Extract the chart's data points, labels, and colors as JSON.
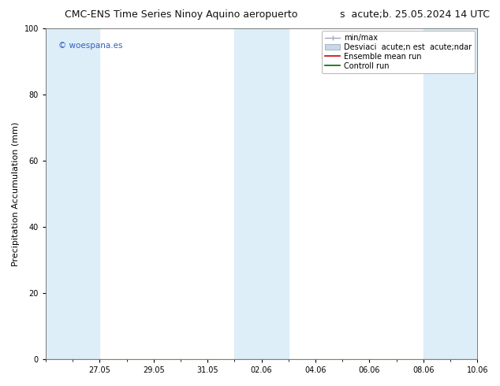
{
  "title": "CMC-ENS Time Series Ninoy Aquino aeropuerto",
  "subtitle": "s  acute;b. 25.05.2024 14 UTC",
  "ylabel": "Precipitation Accumulation (mm)",
  "ylim": [
    0,
    100
  ],
  "yticks": [
    0,
    20,
    40,
    60,
    80,
    100
  ],
  "background_color": "#ffffff",
  "plot_bg_color": "#ffffff",
  "watermark": "© woespana.es",
  "watermark_color": "#3060c0",
  "shaded_bands": [
    {
      "start_day": 0,
      "end_day": 2,
      "color": "#ddeef8"
    },
    {
      "start_day": 7,
      "end_day": 9,
      "color": "#ddeef8"
    },
    {
      "start_day": 14,
      "end_day": 16,
      "color": "#ddeef8"
    }
  ],
  "legend_labels": [
    "min/max",
    "Desviaci  acute;n est  acute;ndar",
    "Ensemble mean run",
    "Controll run"
  ],
  "minmax_line_color": "#a0a8b8",
  "stddev_box_color": "#c8d8e8",
  "stddev_edge_color": "#a8b8c8",
  "ensemble_mean_color": "#cc0000",
  "control_run_color": "#006600",
  "title_fontsize": 9,
  "tick_fontsize": 7,
  "label_fontsize": 8,
  "legend_fontsize": 7,
  "total_days": 16,
  "xtick_positions": [
    2,
    4,
    6,
    8,
    10,
    12,
    14,
    16
  ],
  "xtick_labels": [
    "27.05",
    "29.05",
    "31.05",
    "02.06",
    "04.06",
    "06.06",
    "08.06",
    "10.06"
  ]
}
